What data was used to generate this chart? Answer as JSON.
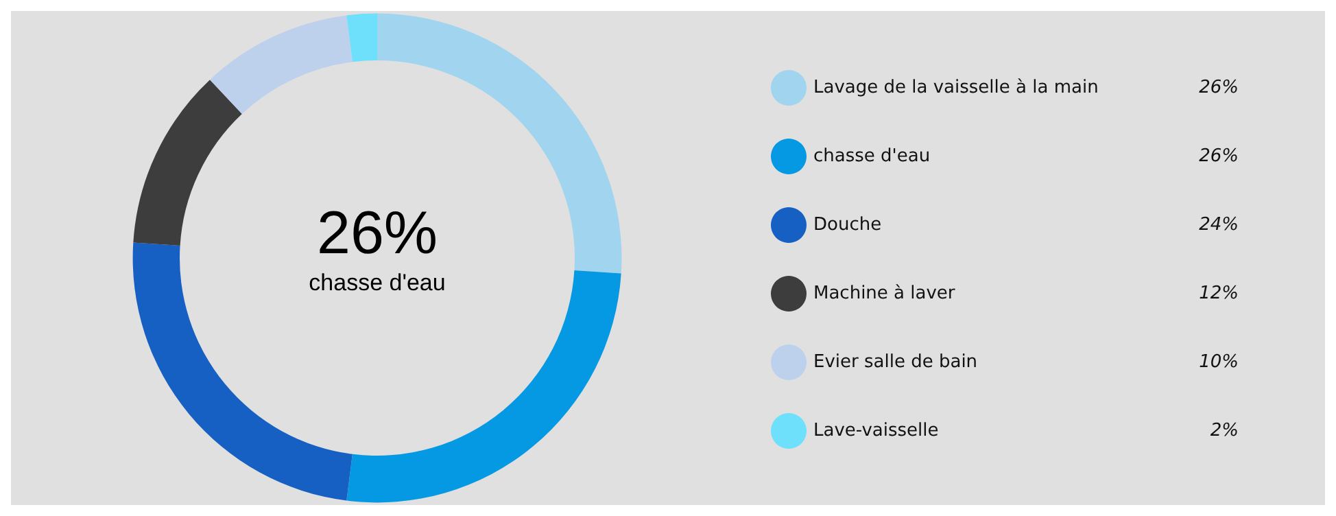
{
  "chart_data": {
    "type": "donut",
    "categories": [
      "Lavage de la vaisselle à la main",
      "chasse d'eau",
      "Douche",
      "Machine à laver",
      "Evier salle de bain",
      "Lave-vaisselle"
    ],
    "values": [
      26,
      26,
      24,
      12,
      10,
      2
    ],
    "colors": [
      "#a0d4ef",
      "#0599e3",
      "#1560c2",
      "#3d3d3d",
      "#bdd0ec",
      "#6ee0fc"
    ],
    "value_labels": [
      "26%",
      "26%",
      "24%",
      "12%",
      "10%",
      "2%"
    ],
    "annotations": [
      "26%",
      "chasse d'eau"
    ],
    "legend": "right"
  }
}
